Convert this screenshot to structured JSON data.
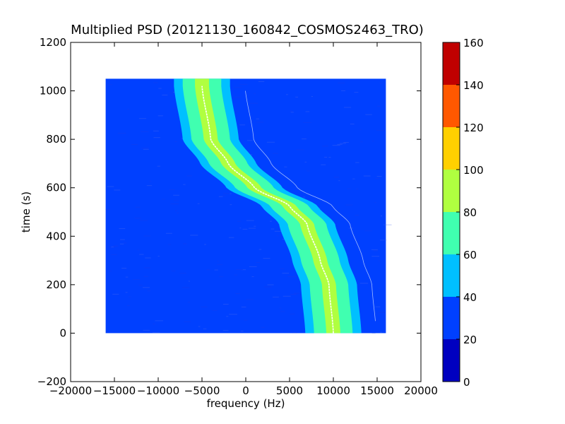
{
  "chart_data": {
    "type": "heatmap",
    "title": "Multiplied PSD (20121130_160842_COSMOS2463_TRO)",
    "xlabel": "frequency (Hz)",
    "ylabel": "time (s)",
    "xlim": [
      -20000,
      20000
    ],
    "ylim": [
      -200,
      1200
    ],
    "x_ticks": [
      -20000,
      -15000,
      -10000,
      -5000,
      0,
      5000,
      10000,
      15000,
      20000
    ],
    "x_tick_labels": [
      "−20000",
      "−15000",
      "−10000",
      "−5000",
      "0",
      "5000",
      "10000",
      "15000",
      "20000"
    ],
    "y_ticks": [
      -200,
      0,
      200,
      400,
      600,
      800,
      1000,
      1200
    ],
    "y_tick_labels": [
      "−200",
      "0",
      "200",
      "400",
      "600",
      "800",
      "1000",
      "1200"
    ],
    "data_extent": {
      "x": [
        -16000,
        16000
      ],
      "y": [
        0,
        1050
      ]
    },
    "background_level": "20-40",
    "doppler_trace": {
      "description_points": [
        {
          "time": 1020,
          "frequency": -5000
        },
        {
          "time": 800,
          "frequency": -4000
        },
        {
          "time": 700,
          "frequency": -2000
        },
        {
          "time": 600,
          "frequency": 1000
        },
        {
          "time": 525,
          "frequency": 5000
        },
        {
          "time": 450,
          "frequency": 7000
        },
        {
          "time": 300,
          "frequency": 8500
        },
        {
          "time": 200,
          "frequency": 9500
        },
        {
          "time": 0,
          "frequency": 10000
        }
      ],
      "band_levels_halfwidth_hz": [
        {
          "level": "40-60",
          "halfwidth": 3200
        },
        {
          "level": "60-80",
          "halfwidth": 2200
        },
        {
          "level": "80-100",
          "halfwidth": 800
        }
      ],
      "secondary_line_offset_hz": 4900
    },
    "colorbar": {
      "min": 0,
      "max": 160,
      "ticks": [
        0,
        20,
        40,
        60,
        80,
        100,
        120,
        140,
        160
      ],
      "tick_labels": [
        "0",
        "20",
        "40",
        "60",
        "80",
        "100",
        "120",
        "140",
        "160"
      ],
      "colors": [
        "#0000c0",
        "#0040ff",
        "#00c0ff",
        "#40ffb0",
        "#b0ff40",
        "#ffd000",
        "#ff5800",
        "#c00000"
      ]
    },
    "grid": false,
    "legend": "none"
  }
}
